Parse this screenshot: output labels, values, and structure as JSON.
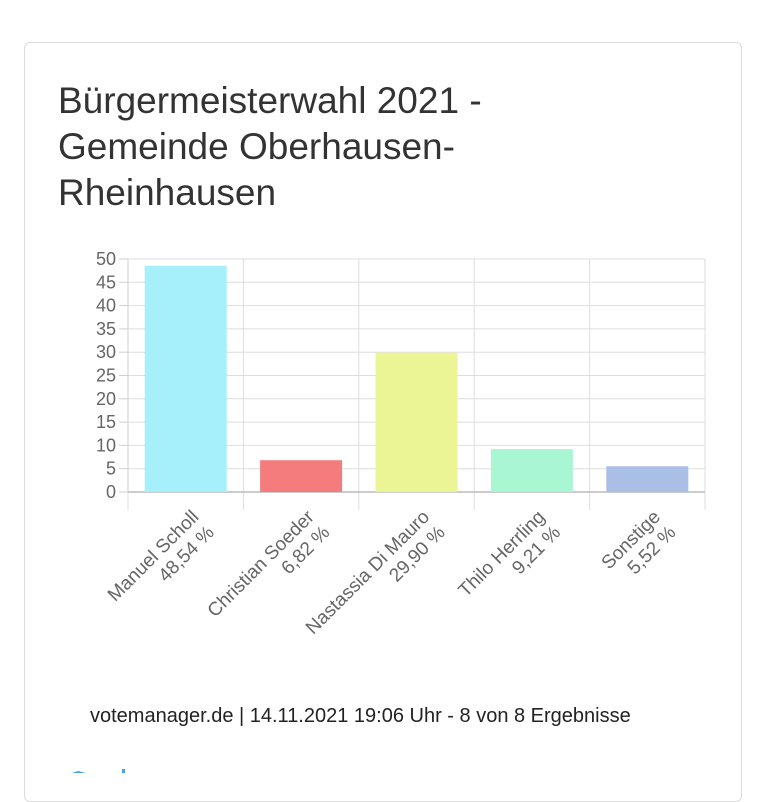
{
  "card": {
    "title": "Bürgermeisterwahl 2021 - Gemeinde Oberhausen-Rheinhausen",
    "footer": "votemanager.de | 14.11.2021 19:06 Uhr - 8 von 8 Ergebnisse"
  },
  "chart_data": {
    "type": "bar",
    "title": "Bürgermeisterwahl 2021 - Gemeinde Oberhausen-Rheinhausen",
    "categories": [
      "Manuel Scholl",
      "Christian Soeder",
      "Nastassia Di Mauro",
      "Thilo Herrling",
      "Sonstige"
    ],
    "value_labels": [
      "48,54 %",
      "6,82 %",
      "29,90 %",
      "9,21 %",
      "5,52 %"
    ],
    "values": [
      48.54,
      6.82,
      29.9,
      9.21,
      5.52
    ],
    "colors": [
      "#a6f0fb",
      "#f47c7c",
      "#ecf596",
      "#a8f7d2",
      "#aabfe6"
    ],
    "ylim": [
      0,
      50
    ],
    "yticks": [
      0,
      5,
      10,
      15,
      20,
      25,
      30,
      35,
      40,
      45,
      50
    ],
    "grid": true,
    "xlabel": "",
    "ylabel": ""
  }
}
